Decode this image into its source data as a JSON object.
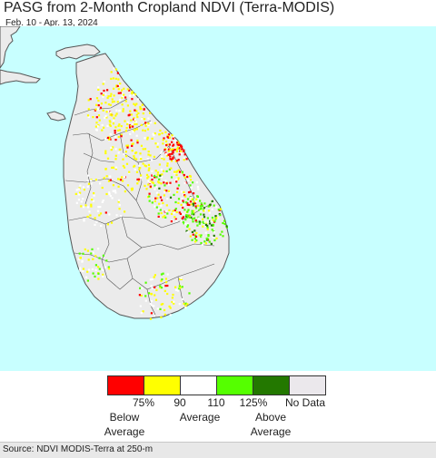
{
  "header": {
    "title": "PASG from 2-Month Cropland NDVI (Terra-MODIS)",
    "date_range": "Feb. 10 - Apr. 13, 2024"
  },
  "map": {
    "ocean_color": "#c8ffff",
    "land_color": "#ebebeb",
    "boundary_color": "#555555"
  },
  "legend": {
    "colors": [
      "#ff0000",
      "#ffff00",
      "#ffffff",
      "#55ff00",
      "#237800",
      "#ebe8ec"
    ],
    "ticks": [
      "75%",
      "90",
      "110",
      "125%",
      "No Data"
    ],
    "captions": {
      "below_1": "Below",
      "below_2": "Average",
      "avg": "Average",
      "above_1": "Above",
      "above_2": "Average"
    }
  },
  "footer": {
    "source": "Source: NDVI MODIS-Terra at 250-m"
  }
}
